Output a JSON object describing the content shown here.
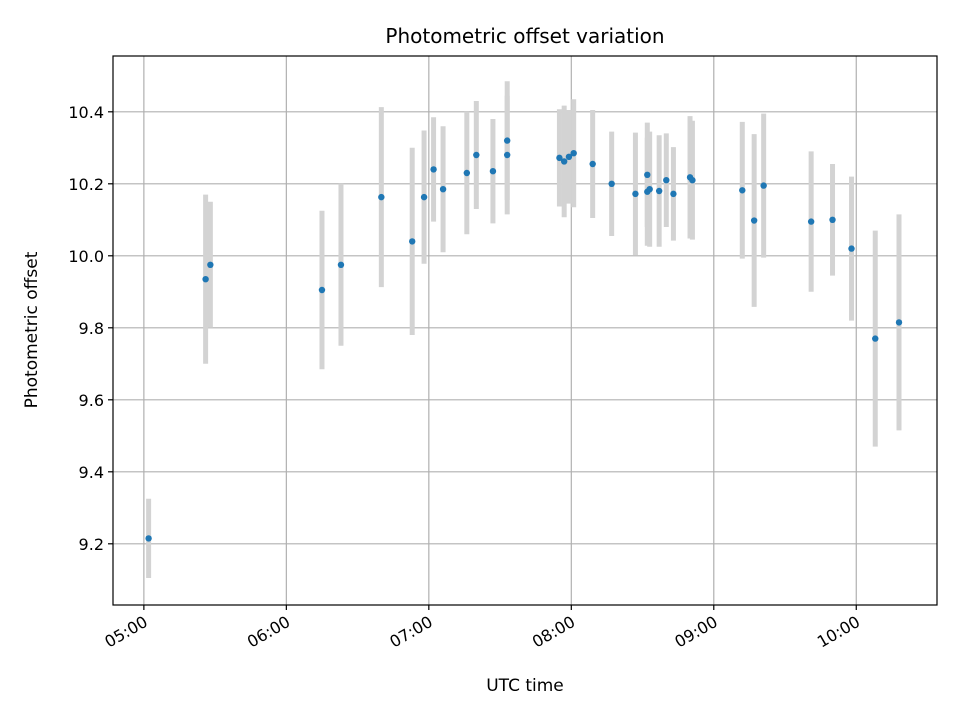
{
  "chart_data": {
    "type": "scatter",
    "title": "Photometric offset variation",
    "xlabel": "UTC time",
    "ylabel": "Photometric offset",
    "x_ticks": [
      "05:00",
      "06:00",
      "07:00",
      "08:00",
      "09:00",
      "10:00"
    ],
    "y_ticks": [
      "9.2",
      "9.4",
      "9.6",
      "9.8",
      "10.0",
      "10.2",
      "10.4"
    ],
    "xlim": [
      "04:47",
      "10:34"
    ],
    "ylim": [
      9.03,
      10.555
    ],
    "grid": true,
    "marker_color": "#1f77b4",
    "errorbar_color": "#d3d3d3",
    "points": [
      {
        "t": "05:02",
        "y": 9.215,
        "err": 0.11
      },
      {
        "t": "05:26",
        "y": 9.935,
        "err": 0.235
      },
      {
        "t": "05:28",
        "y": 9.975,
        "err": 0.175
      },
      {
        "t": "06:15",
        "y": 9.905,
        "err": 0.22
      },
      {
        "t": "06:23",
        "y": 9.975,
        "err": 0.225
      },
      {
        "t": "06:40",
        "y": 10.163,
        "err": 0.25
      },
      {
        "t": "06:53",
        "y": 10.04,
        "err": 0.26
      },
      {
        "t": "06:58",
        "y": 10.163,
        "err": 0.185
      },
      {
        "t": "07:02",
        "y": 10.24,
        "err": 0.145
      },
      {
        "t": "07:06",
        "y": 10.185,
        "err": 0.175
      },
      {
        "t": "07:16",
        "y": 10.23,
        "err": 0.17
      },
      {
        "t": "07:20",
        "y": 10.28,
        "err": 0.15
      },
      {
        "t": "07:27",
        "y": 10.235,
        "err": 0.145
      },
      {
        "t": "07:33",
        "y": 10.32,
        "err": 0.165
      },
      {
        "t": "07:33",
        "y": 10.28,
        "err": 0.165
      },
      {
        "t": "07:55",
        "y": 10.272,
        "err": 0.135
      },
      {
        "t": "07:57",
        "y": 10.262,
        "err": 0.155
      },
      {
        "t": "07:59",
        "y": 10.275,
        "err": 0.13
      },
      {
        "t": "08:01",
        "y": 10.285,
        "err": 0.15
      },
      {
        "t": "08:09",
        "y": 10.255,
        "err": 0.15
      },
      {
        "t": "08:17",
        "y": 10.2,
        "err": 0.145
      },
      {
        "t": "08:27",
        "y": 10.172,
        "err": 0.17
      },
      {
        "t": "08:32",
        "y": 10.225,
        "err": 0.145
      },
      {
        "t": "08:32",
        "y": 10.178,
        "err": 0.15
      },
      {
        "t": "08:33",
        "y": 10.185,
        "err": 0.16
      },
      {
        "t": "08:37",
        "y": 10.18,
        "err": 0.155
      },
      {
        "t": "08:40",
        "y": 10.21,
        "err": 0.13
      },
      {
        "t": "08:43",
        "y": 10.172,
        "err": 0.13
      },
      {
        "t": "08:50",
        "y": 10.218,
        "err": 0.17
      },
      {
        "t": "08:51",
        "y": 10.21,
        "err": 0.165
      },
      {
        "t": "09:12",
        "y": 10.182,
        "err": 0.19
      },
      {
        "t": "09:17",
        "y": 10.098,
        "err": 0.24
      },
      {
        "t": "09:21",
        "y": 10.195,
        "err": 0.2
      },
      {
        "t": "09:41",
        "y": 10.095,
        "err": 0.195
      },
      {
        "t": "09:50",
        "y": 10.1,
        "err": 0.155
      },
      {
        "t": "09:58",
        "y": 10.02,
        "err": 0.2
      },
      {
        "t": "10:08",
        "y": 9.77,
        "err": 0.3
      },
      {
        "t": "10:18",
        "y": 9.815,
        "err": 0.3
      }
    ]
  }
}
